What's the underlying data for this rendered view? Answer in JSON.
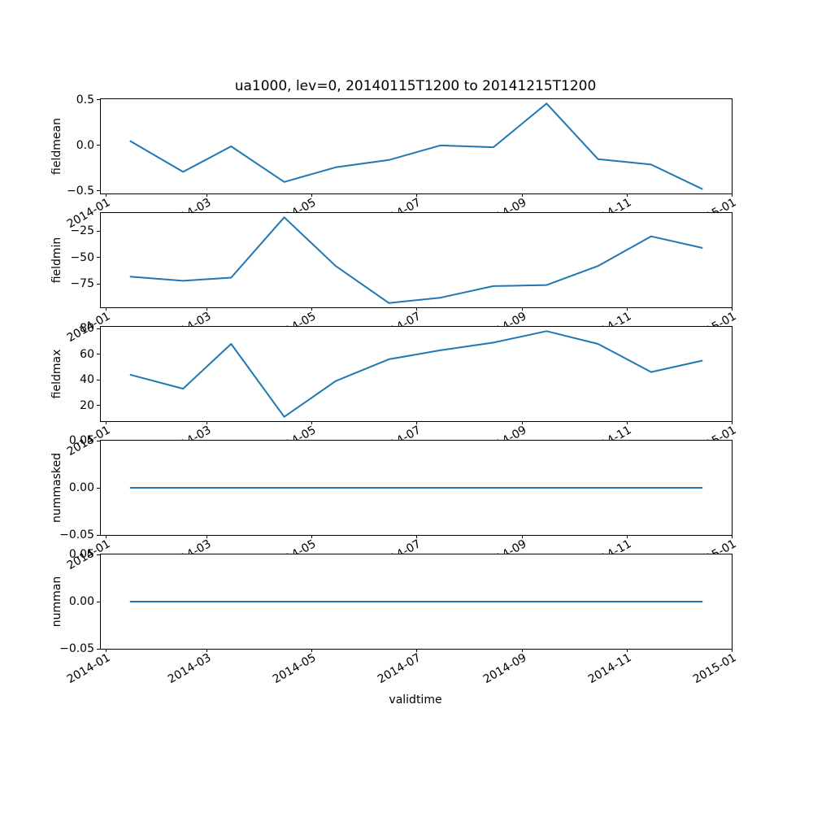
{
  "title": "ua1000, lev=0, 20140115T1200 to 20141215T1200",
  "xlabel": "validtime",
  "line_color": "#1f77b4",
  "x_axis": {
    "tick_labels": [
      "2014-01",
      "2014-03",
      "2014-05",
      "2014-07",
      "2014-09",
      "2014-11",
      "2015-01"
    ],
    "tick_days": [
      3,
      62,
      123,
      184,
      246,
      307,
      368
    ],
    "span_days": 368,
    "data_days": [
      17,
      48,
      76,
      107,
      137,
      168,
      198,
      229,
      260,
      290,
      321,
      351
    ]
  },
  "chart_data": [
    {
      "type": "line",
      "ylabel": "fieldmean",
      "x": [
        "2014-01-15",
        "2014-02-15",
        "2014-03-15",
        "2014-04-15",
        "2014-05-15",
        "2014-06-15",
        "2014-07-15",
        "2014-08-15",
        "2014-09-15",
        "2014-10-15",
        "2014-11-15",
        "2014-12-15"
      ],
      "values": [
        0.05,
        -0.29,
        -0.01,
        -0.4,
        -0.24,
        -0.16,
        0.0,
        -0.02,
        0.46,
        -0.15,
        -0.21,
        -0.48
      ],
      "ylim": [
        -0.527,
        0.507
      ],
      "yticks": [
        {
          "v": 0.5,
          "label": "0.5"
        },
        {
          "v": 0.0,
          "label": "0.0"
        },
        {
          "v": -0.5,
          "label": "−0.5"
        }
      ]
    },
    {
      "type": "line",
      "ylabel": "fieldmin",
      "x": [
        "2014-01-15",
        "2014-02-15",
        "2014-03-15",
        "2014-04-15",
        "2014-05-15",
        "2014-06-15",
        "2014-07-15",
        "2014-08-15",
        "2014-09-15",
        "2014-10-15",
        "2014-11-15",
        "2014-12-15"
      ],
      "values": [
        -68,
        -72,
        -69,
        -12,
        -58,
        -93,
        -88,
        -77,
        -76,
        -58,
        -30,
        -41
      ],
      "ylim": [
        -97.05,
        -7.95
      ],
      "yticks": [
        {
          "v": -25,
          "label": "−25"
        },
        {
          "v": -50,
          "label": "−50"
        },
        {
          "v": -75,
          "label": "−75"
        }
      ]
    },
    {
      "type": "line",
      "ylabel": "fieldmax",
      "x": [
        "2014-01-15",
        "2014-02-15",
        "2014-03-15",
        "2014-04-15",
        "2014-05-15",
        "2014-06-15",
        "2014-07-15",
        "2014-08-15",
        "2014-09-15",
        "2014-10-15",
        "2014-11-15",
        "2014-12-15"
      ],
      "values": [
        44,
        33,
        68,
        11,
        39,
        56,
        63,
        69,
        78,
        68,
        46,
        55
      ],
      "ylim": [
        7.65,
        81.35
      ],
      "yticks": [
        {
          "v": 80,
          "label": "80"
        },
        {
          "v": 60,
          "label": "60"
        },
        {
          "v": 40,
          "label": "40"
        },
        {
          "v": 20,
          "label": "20"
        }
      ]
    },
    {
      "type": "line",
      "ylabel": "nummasked",
      "x": [
        "2014-01-15",
        "2014-02-15",
        "2014-03-15",
        "2014-04-15",
        "2014-05-15",
        "2014-06-15",
        "2014-07-15",
        "2014-08-15",
        "2014-09-15",
        "2014-10-15",
        "2014-11-15",
        "2014-12-15"
      ],
      "values": [
        0,
        0,
        0,
        0,
        0,
        0,
        0,
        0,
        0,
        0,
        0,
        0
      ],
      "ylim": [
        -0.05,
        0.05
      ],
      "yticks": [
        {
          "v": 0.05,
          "label": "0.05"
        },
        {
          "v": 0.0,
          "label": "0.00"
        },
        {
          "v": -0.05,
          "label": "−0.05"
        }
      ]
    },
    {
      "type": "line",
      "ylabel": "numman",
      "x": [
        "2014-01-15",
        "2014-02-15",
        "2014-03-15",
        "2014-04-15",
        "2014-05-15",
        "2014-06-15",
        "2014-07-15",
        "2014-08-15",
        "2014-09-15",
        "2014-10-15",
        "2014-11-15",
        "2014-12-15"
      ],
      "values": [
        0,
        0,
        0,
        0,
        0,
        0,
        0,
        0,
        0,
        0,
        0,
        0
      ],
      "ylim": [
        -0.05,
        0.05
      ],
      "yticks": [
        {
          "v": 0.05,
          "label": "0.05"
        },
        {
          "v": 0.0,
          "label": "0.00"
        },
        {
          "v": -0.05,
          "label": "−0.05"
        }
      ]
    }
  ]
}
